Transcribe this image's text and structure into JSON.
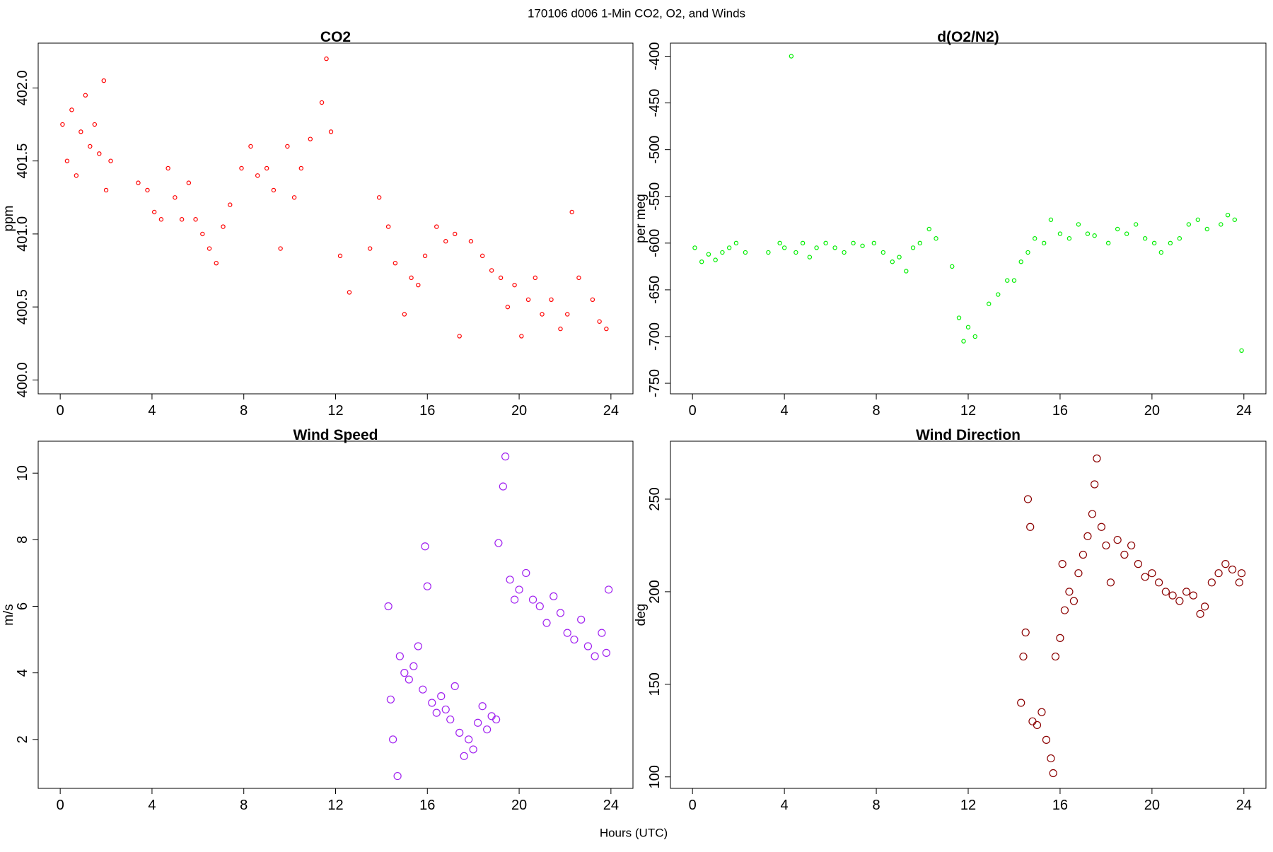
{
  "title": "170106   d006   1-Min CO2, O2, and Winds",
  "xlabel": "Hours (UTC)",
  "chart_data": [
    {
      "type": "scatter",
      "title": "CO2",
      "ylabel": "ppm",
      "color": "#ff0000",
      "xlim": [
        -0.96,
        24.96
      ],
      "ylim": [
        399.905,
        402.307
      ],
      "xticks": [
        0,
        4,
        8,
        12,
        16,
        20,
        24
      ],
      "yticks": [
        {
          "value": 400,
          "label": "400.0"
        },
        400.5,
        {
          "value": 401,
          "label": "401.0"
        },
        401.5,
        {
          "value": 402,
          "label": "402.0"
        }
      ],
      "x": [
        0.1,
        0.3,
        0.5,
        0.7,
        0.9,
        1.1,
        1.3,
        1.5,
        1.7,
        1.9,
        2.0,
        2.2,
        3.4,
        3.8,
        4.1,
        4.4,
        4.7,
        5.0,
        5.3,
        5.6,
        5.9,
        6.2,
        6.5,
        6.8,
        7.1,
        7.4,
        7.9,
        8.3,
        8.6,
        9.0,
        9.3,
        9.6,
        9.9,
        10.2,
        10.5,
        10.9,
        11.4,
        11.6,
        11.8,
        12.2,
        12.6,
        13.5,
        13.9,
        14.3,
        14.6,
        15.0,
        15.3,
        15.6,
        15.9,
        16.4,
        16.8,
        17.2,
        17.4,
        17.9,
        18.4,
        18.8,
        19.2,
        19.5,
        19.8,
        20.1,
        20.4,
        20.7,
        21.0,
        21.4,
        21.8,
        22.1,
        22.3,
        22.6,
        23.2,
        23.5,
        23.8
      ],
      "values": [
        401.75,
        401.5,
        401.85,
        401.4,
        401.7,
        401.95,
        401.6,
        401.75,
        401.55,
        402.05,
        401.3,
        401.5,
        401.35,
        401.3,
        401.15,
        401.1,
        401.45,
        401.25,
        401.1,
        401.35,
        401.1,
        401.0,
        400.9,
        400.8,
        401.05,
        401.2,
        401.45,
        401.6,
        401.4,
        401.45,
        401.3,
        400.9,
        401.6,
        401.25,
        401.45,
        401.65,
        401.9,
        402.2,
        401.7,
        400.85,
        400.6,
        400.9,
        401.25,
        401.05,
        400.8,
        400.45,
        400.7,
        400.65,
        400.85,
        401.05,
        400.95,
        401.0,
        400.3,
        400.95,
        400.85,
        400.75,
        400.7,
        400.5,
        400.65,
        400.3,
        400.55,
        400.7,
        400.45,
        400.55,
        400.35,
        400.45,
        401.15,
        400.7,
        400.55,
        400.4,
        400.35
      ]
    },
    {
      "type": "scatter",
      "title": "d(O2/N2)",
      "ylabel": "per meg",
      "color": "#00ee00",
      "xlim": [
        -0.96,
        24.96
      ],
      "ylim": [
        -761.3,
        -386
      ],
      "xticks": [
        0,
        4,
        8,
        12,
        16,
        20,
        24
      ],
      "yticks": [
        -750,
        -700,
        -650,
        -600,
        -550,
        -500,
        -450,
        -400
      ],
      "x": [
        0.1,
        0.4,
        0.7,
        1.0,
        1.3,
        1.6,
        1.9,
        2.3,
        3.3,
        3.8,
        4.0,
        4.3,
        4.5,
        4.8,
        5.1,
        5.4,
        5.8,
        6.2,
        6.6,
        7.0,
        7.4,
        7.9,
        8.3,
        8.7,
        9.0,
        9.3,
        9.6,
        9.9,
        10.3,
        10.6,
        11.3,
        11.6,
        11.8,
        12.0,
        12.3,
        12.9,
        13.3,
        13.7,
        14.0,
        14.3,
        14.6,
        14.9,
        15.3,
        15.6,
        16.0,
        16.4,
        16.8,
        17.2,
        17.5,
        18.1,
        18.5,
        18.9,
        19.3,
        19.7,
        20.1,
        20.4,
        20.8,
        21.2,
        21.6,
        22.0,
        22.4,
        23.0,
        23.3,
        23.6,
        23.9
      ],
      "values": [
        -605,
        -620,
        -612,
        -618,
        -610,
        -605,
        -600,
        -610,
        -610,
        -600,
        -605,
        -400,
        -610,
        -600,
        -615,
        -605,
        -600,
        -605,
        -610,
        -600,
        -603,
        -600,
        -610,
        -620,
        -615,
        -630,
        -605,
        -600,
        -585,
        -595,
        -625,
        -680,
        -705,
        -690,
        -700,
        -665,
        -655,
        -640,
        -640,
        -620,
        -610,
        -595,
        -600,
        -575,
        -590,
        -595,
        -580,
        -590,
        -592,
        -600,
        -585,
        -590,
        -580,
        -595,
        -600,
        -610,
        -600,
        -595,
        -580,
        -575,
        -585,
        -580,
        -570,
        -575,
        -715
      ]
    },
    {
      "type": "scatter",
      "title": "Wind Speed",
      "ylabel": "m/s",
      "color": "#a020f0",
      "xlim": [
        -0.96,
        24.96
      ],
      "ylim": [
        0.53,
        10.96
      ],
      "xticks": [
        0,
        4,
        8,
        12,
        16,
        20,
        24
      ],
      "yticks": [
        2,
        4,
        6,
        8,
        10
      ],
      "x": [
        14.3,
        14.4,
        14.5,
        14.7,
        14.8,
        15.0,
        15.2,
        15.4,
        15.6,
        15.8,
        15.9,
        16.0,
        16.2,
        16.4,
        16.6,
        16.8,
        17.0,
        17.2,
        17.4,
        17.6,
        17.8,
        18.0,
        18.2,
        18.4,
        18.6,
        18.8,
        19.0,
        19.1,
        19.3,
        19.4,
        19.6,
        19.8,
        20.0,
        20.3,
        20.6,
        20.9,
        21.2,
        21.5,
        21.8,
        22.1,
        22.4,
        22.7,
        23.0,
        23.3,
        23.6,
        23.8,
        23.9
      ],
      "values": [
        6.0,
        3.2,
        2.0,
        0.9,
        4.5,
        4.0,
        3.8,
        4.2,
        4.8,
        3.5,
        7.8,
        6.6,
        3.1,
        2.8,
        3.3,
        2.9,
        2.6,
        3.6,
        2.2,
        1.5,
        2.0,
        1.7,
        2.5,
        3.0,
        2.3,
        2.7,
        2.6,
        7.9,
        9.6,
        10.5,
        6.8,
        6.2,
        6.5,
        7.0,
        6.2,
        6.0,
        5.5,
        6.3,
        5.8,
        5.2,
        5.0,
        5.6,
        4.8,
        4.5,
        5.2,
        4.6,
        6.5
      ]
    },
    {
      "type": "scatter",
      "title": "Wind Direction",
      "ylabel": "deg",
      "color": "#8b0000",
      "xlim": [
        -0.96,
        24.96
      ],
      "ylim": [
        93.8,
        281.3
      ],
      "xticks": [
        0,
        4,
        8,
        12,
        16,
        20,
        24
      ],
      "yticks": [
        100,
        150,
        200,
        250
      ],
      "x": [
        14.3,
        14.4,
        14.5,
        14.6,
        14.7,
        14.8,
        15.0,
        15.2,
        15.4,
        15.6,
        15.7,
        15.8,
        16.0,
        16.1,
        16.2,
        16.4,
        16.6,
        16.8,
        17.0,
        17.2,
        17.4,
        17.5,
        17.6,
        17.8,
        18.0,
        18.2,
        18.5,
        18.8,
        19.1,
        19.4,
        19.7,
        20.0,
        20.3,
        20.6,
        20.9,
        21.2,
        21.5,
        21.8,
        22.1,
        22.3,
        22.6,
        22.9,
        23.2,
        23.5,
        23.8,
        23.9
      ],
      "values": [
        140,
        165,
        178,
        250,
        235,
        130,
        128,
        135,
        120,
        110,
        102,
        165,
        175,
        215,
        190,
        200,
        195,
        210,
        220,
        230,
        242,
        258,
        272,
        235,
        225,
        205,
        228,
        220,
        225,
        215,
        208,
        210,
        205,
        200,
        198,
        195,
        200,
        198,
        188,
        192,
        205,
        210,
        215,
        212,
        205,
        210
      ]
    }
  ]
}
